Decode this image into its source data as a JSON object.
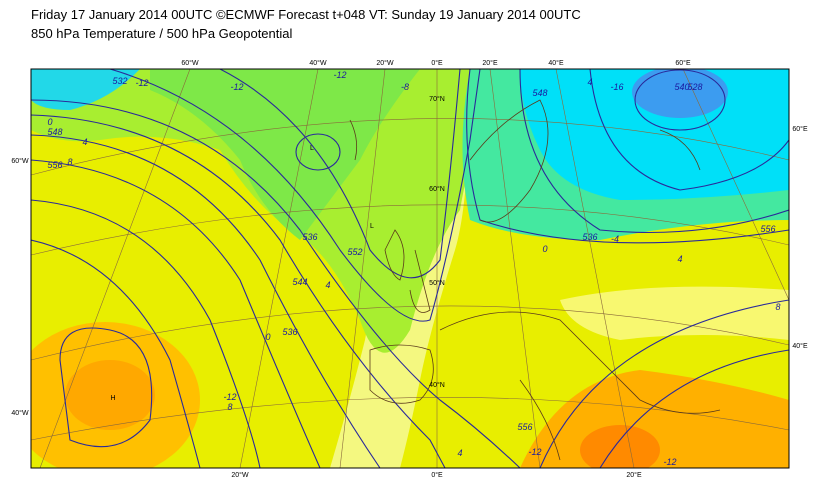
{
  "header": {
    "title": "Friday 17 January 2014 00UTC ©ECMWF Forecast t+048 VT: Sunday 19 January 2014 00UTC",
    "subtitle": "850 hPa Temperature / 500 hPa Geopotential"
  },
  "map": {
    "grid_labels": [
      "60°W",
      "40°W",
      "20°W",
      "0°E",
      "20°E",
      "40°E",
      "60°E",
      "70°N",
      "60°N",
      "50°N",
      "40°N",
      "60°W",
      "40°W",
      "60°E",
      "40°E",
      "20°W",
      "0°E",
      "20°E"
    ],
    "contour_labels": [
      "532",
      "-12",
      "-12",
      "548",
      "0",
      "4",
      "556",
      "8",
      "-12",
      "-8",
      "536",
      "552",
      "544",
      "4",
      "0",
      "-12",
      "536",
      "548",
      "4",
      "0",
      "-4",
      "-16",
      "536",
      "540",
      "528",
      "556",
      "4",
      "8",
      "8",
      "4",
      "556",
      "-12",
      "-12"
    ],
    "pressure_labels": [
      "L",
      "L",
      "H"
    ]
  }
}
